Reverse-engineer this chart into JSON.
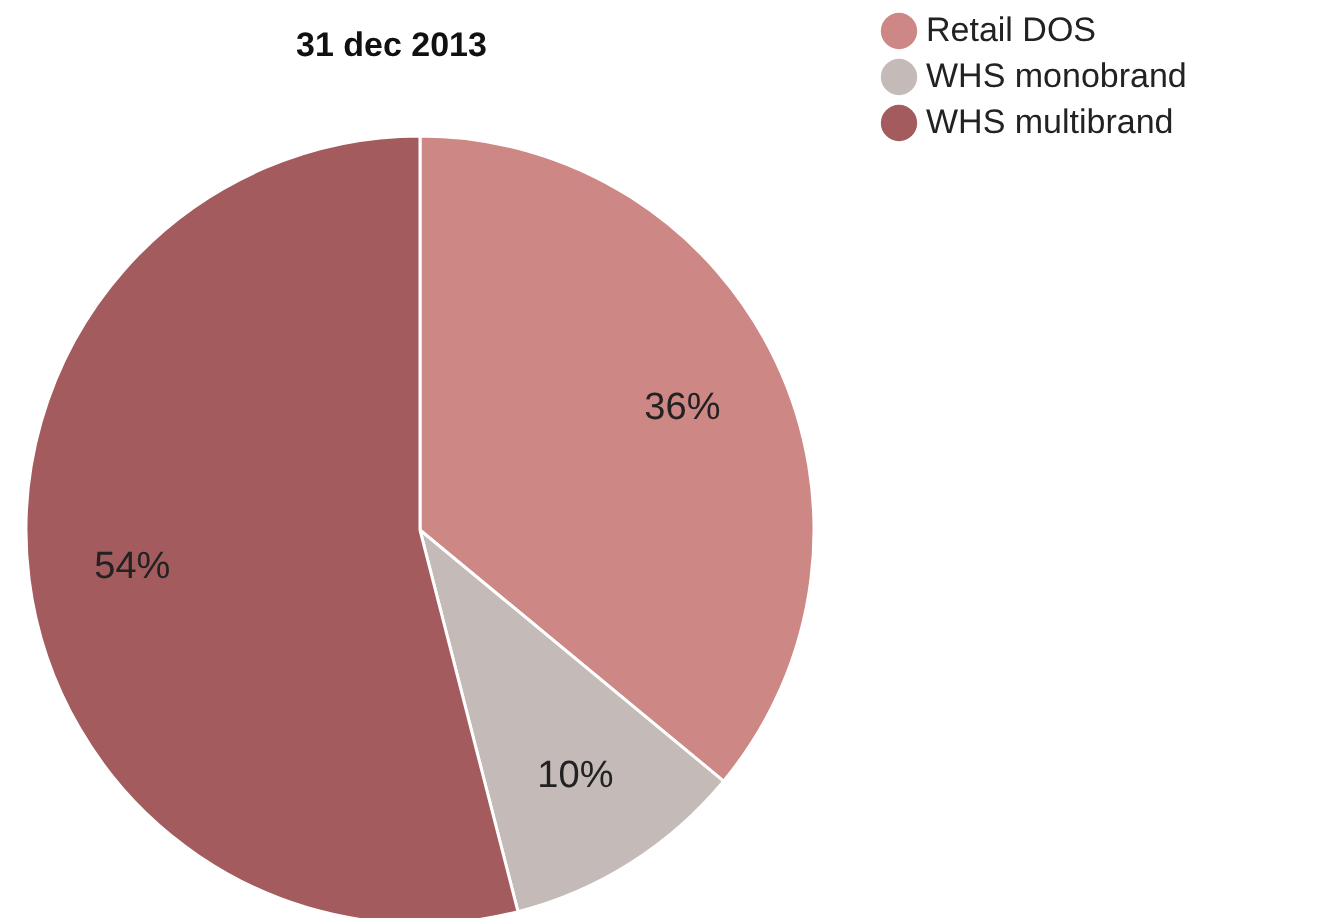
{
  "chart_data": {
    "type": "pie",
    "title": "31 dec 2013",
    "categories": [
      "Retail DOS",
      "WHS monobrand",
      "WHS multibrand"
    ],
    "values": [
      36,
      10,
      54
    ],
    "value_labels": [
      "36%",
      "10%",
      "54%"
    ],
    "colors": [
      "#cd8784",
      "#c4bab7",
      "#a45b5e"
    ],
    "legend": "top right"
  }
}
